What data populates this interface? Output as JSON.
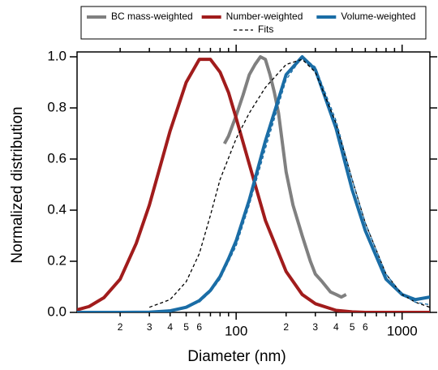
{
  "chart_data": {
    "type": "line",
    "xlabel": "Diameter (nm)",
    "ylabel": "Normalized distribution",
    "xscale": "log",
    "xlim": [
      11,
      1470
    ],
    "ylim": [
      0,
      1.0
    ],
    "xticks": [
      {
        "value": 20,
        "label": "2"
      },
      {
        "value": 30,
        "label": "3"
      },
      {
        "value": 40,
        "label": "4"
      },
      {
        "value": 50,
        "label": "5"
      },
      {
        "value": 60,
        "label": "6"
      },
      100,
      {
        "value": 200,
        "label": "2"
      },
      {
        "value": 300,
        "label": "3"
      },
      {
        "value": 400,
        "label": "4"
      },
      {
        "value": 500,
        "label": "5"
      },
      {
        "value": 600,
        "label": "6"
      },
      1000
    ],
    "xminor": [
      70,
      80,
      90,
      700,
      800,
      900
    ],
    "yticks": [
      {
        "value": 0,
        "label": "0.0"
      },
      {
        "value": 0.2,
        "label": "0.2"
      },
      {
        "value": 0.4,
        "label": "0.4"
      },
      {
        "value": 0.6,
        "label": "0.6"
      },
      {
        "value": 0.8,
        "label": "0.8"
      },
      {
        "value": 1,
        "label": "1.0"
      }
    ],
    "legend": "top",
    "series": [
      {
        "name": "BC mass-weighted",
        "color": "#808080",
        "dashed": false,
        "x": [
          85,
          90,
          100,
          110,
          120,
          130,
          140,
          150,
          160,
          170,
          180,
          200,
          220,
          250,
          280,
          300,
          330,
          370,
          400,
          430,
          460
        ],
        "values": [
          0.66,
          0.69,
          0.77,
          0.85,
          0.93,
          0.97,
          1.0,
          0.99,
          0.93,
          0.86,
          0.78,
          0.55,
          0.42,
          0.3,
          0.2,
          0.15,
          0.12,
          0.08,
          0.07,
          0.06,
          0.07
        ]
      },
      {
        "name": "Number-weighted",
        "color": "#a11c1c",
        "dashed": false,
        "x": [
          11,
          13,
          16,
          20,
          25,
          30,
          40,
          50,
          60,
          70,
          80,
          90,
          100,
          120,
          150,
          200,
          250,
          300,
          400,
          500,
          600,
          800,
          1000,
          1200,
          1470
        ],
        "values": [
          0.01,
          0.023,
          0.058,
          0.13,
          0.27,
          0.42,
          0.71,
          0.9,
          0.99,
          0.99,
          0.94,
          0.86,
          0.76,
          0.58,
          0.36,
          0.16,
          0.07,
          0.034,
          0.008,
          0.002,
          0,
          0,
          0,
          0,
          0
        ]
      },
      {
        "name": "Volume-weighted",
        "color": "#1a6da6",
        "dashed": false,
        "x": [
          11,
          20,
          30,
          40,
          50,
          60,
          70,
          80,
          90,
          100,
          120,
          150,
          200,
          250,
          300,
          400,
          500,
          600,
          800,
          1000,
          1200,
          1470
        ],
        "values": [
          0,
          0,
          0.001,
          0.006,
          0.02,
          0.046,
          0.086,
          0.14,
          0.21,
          0.28,
          0.44,
          0.67,
          0.93,
          1.0,
          0.95,
          0.72,
          0.48,
          0.32,
          0.13,
          0.07,
          0.05,
          0.06
        ]
      },
      {
        "name": "Fits",
        "color": "#000000",
        "dashed": true,
        "x": [
          30,
          40,
          50,
          60,
          70,
          80,
          100,
          120,
          150,
          200,
          250,
          300,
          400,
          500,
          600,
          800,
          1000,
          1200,
          1470
        ],
        "values": [
          0.02,
          0.05,
          0.12,
          0.23,
          0.38,
          0.52,
          0.68,
          0.78,
          0.88,
          0.97,
          0.99,
          0.94,
          0.74,
          0.52,
          0.35,
          0.15,
          0.07,
          0.04,
          0.02
        ]
      },
      {
        "color": "#1a6da6",
        "dashed": true,
        "x": [
          30,
          40,
          50,
          60,
          70,
          80,
          100,
          120,
          150,
          200,
          250,
          300,
          400,
          500,
          600,
          800,
          1000,
          1200,
          1470
        ],
        "values": [
          0,
          0.01,
          0.02,
          0.04,
          0.08,
          0.13,
          0.26,
          0.42,
          0.64,
          0.91,
          1.0,
          0.96,
          0.75,
          0.52,
          0.35,
          0.15,
          0.07,
          0.04,
          0.03
        ]
      }
    ]
  }
}
